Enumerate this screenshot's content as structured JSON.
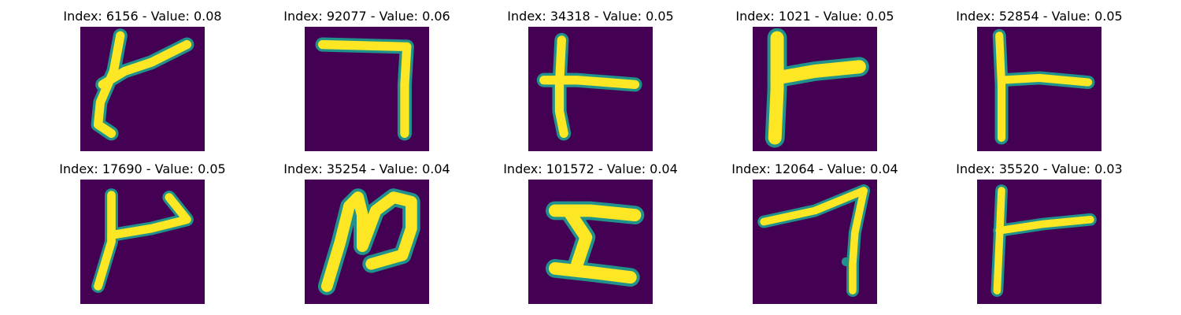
{
  "panels": [
    {
      "title": "Index: 6156 - Value: 0.08"
    },
    {
      "title": "Index: 92077 - Value: 0.06"
    },
    {
      "title": "Index: 34318 - Value: 0.05"
    },
    {
      "title": "Index: 1021 - Value: 0.05"
    },
    {
      "title": "Index: 52854 - Value: 0.05"
    },
    {
      "title": "Index: 17690 - Value: 0.05"
    },
    {
      "title": "Index: 35254 - Value: 0.04"
    },
    {
      "title": "Index: 101572 - Value: 0.04"
    },
    {
      "title": "Index: 12064 - Value: 0.04"
    },
    {
      "title": "Index: 35520 - Value: 0.03"
    }
  ],
  "colors": {
    "background": "#440154",
    "edge": "#21918c",
    "stroke": "#fde725",
    "title": "#000000"
  }
}
